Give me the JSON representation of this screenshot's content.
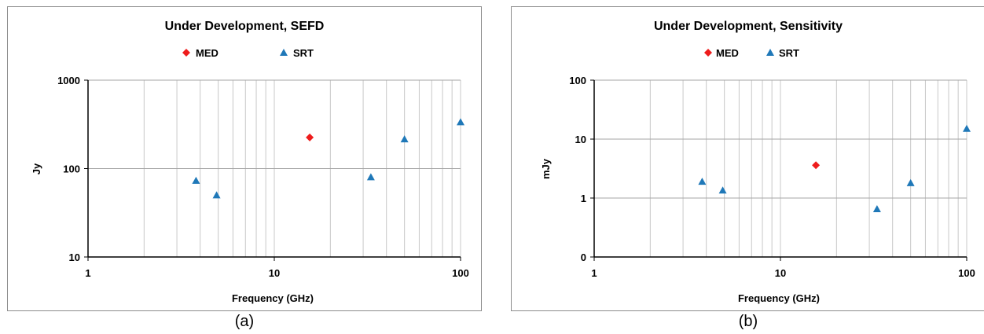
{
  "chart_data": [
    {
      "type": "scatter",
      "title": "Under Development, SEFD",
      "xlabel": "Frequency (GHz)",
      "ylabel": "Jy",
      "x_scale": "log",
      "y_scale": "log",
      "xlim": [
        1,
        100
      ],
      "ylim": [
        10,
        1000
      ],
      "x_ticks": [
        1,
        10,
        100
      ],
      "x_tick_labels": [
        "1",
        "10",
        "100"
      ],
      "y_ticks": [
        10,
        100,
        1000
      ],
      "y_tick_labels": [
        "10",
        "100",
        "1000"
      ],
      "grid": true,
      "legend_placement": "top-center",
      "caption": "(a)",
      "series": [
        {
          "name": "MED",
          "marker": "diamond",
          "color": "#ee1c1c",
          "points": [
            {
              "x": 15.5,
              "y": 225
            }
          ]
        },
        {
          "name": "SRT",
          "marker": "triangle",
          "color": "#1f78b8",
          "points": [
            {
              "x": 3.8,
              "y": 73
            },
            {
              "x": 4.9,
              "y": 50
            },
            {
              "x": 33,
              "y": 80
            },
            {
              "x": 50,
              "y": 215
            },
            {
              "x": 100,
              "y": 335
            }
          ]
        }
      ]
    },
    {
      "type": "scatter",
      "title": "Under Development, Sensitivity",
      "xlabel": "Frequency (GHz)",
      "ylabel": "mJy",
      "x_scale": "log",
      "y_scale": "log",
      "xlim": [
        1,
        100
      ],
      "ylim": [
        0.1,
        100
      ],
      "x_ticks": [
        1,
        10,
        100
      ],
      "x_tick_labels": [
        "1",
        "10",
        "100"
      ],
      "y_ticks": [
        0.1,
        1,
        10,
        100
      ],
      "y_tick_labels": [
        "0",
        "1",
        "10",
        "100"
      ],
      "grid": true,
      "legend_placement": "top-center",
      "caption": "(b)",
      "series": [
        {
          "name": "MED",
          "marker": "diamond",
          "color": "#ee1c1c",
          "points": [
            {
              "x": 15.5,
              "y": 3.6
            }
          ]
        },
        {
          "name": "SRT",
          "marker": "triangle",
          "color": "#1f78b8",
          "points": [
            {
              "x": 3.8,
              "y": 1.9
            },
            {
              "x": 4.9,
              "y": 1.35
            },
            {
              "x": 33,
              "y": 0.65
            },
            {
              "x": 50,
              "y": 1.8
            },
            {
              "x": 100,
              "y": 15
            }
          ]
        }
      ]
    }
  ]
}
